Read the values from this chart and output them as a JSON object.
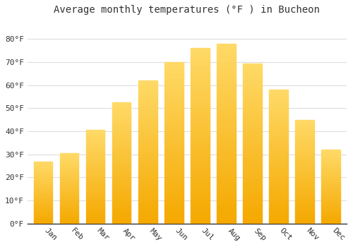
{
  "title": "Average monthly temperatures (°F ) in Bucheon",
  "months": [
    "Jan",
    "Feb",
    "Mar",
    "Apr",
    "May",
    "Jun",
    "Jul",
    "Aug",
    "Sep",
    "Oct",
    "Nov",
    "Dec"
  ],
  "values": [
    27,
    30.5,
    40.5,
    52.5,
    62,
    70,
    76,
    78,
    69.5,
    58,
    45,
    32
  ],
  "bar_color_bottom": "#F5A800",
  "bar_color_top": "#FFD966",
  "ylim": [
    0,
    88
  ],
  "yticks": [
    0,
    10,
    20,
    30,
    40,
    50,
    60,
    70,
    80
  ],
  "ytick_labels": [
    "0°F",
    "10°F",
    "20°F",
    "30°F",
    "40°F",
    "50°F",
    "60°F",
    "70°F",
    "80°F"
  ],
  "background_color": "#ffffff",
  "grid_color": "#dddddd",
  "title_fontsize": 10,
  "tick_fontsize": 8,
  "font_family": "monospace"
}
